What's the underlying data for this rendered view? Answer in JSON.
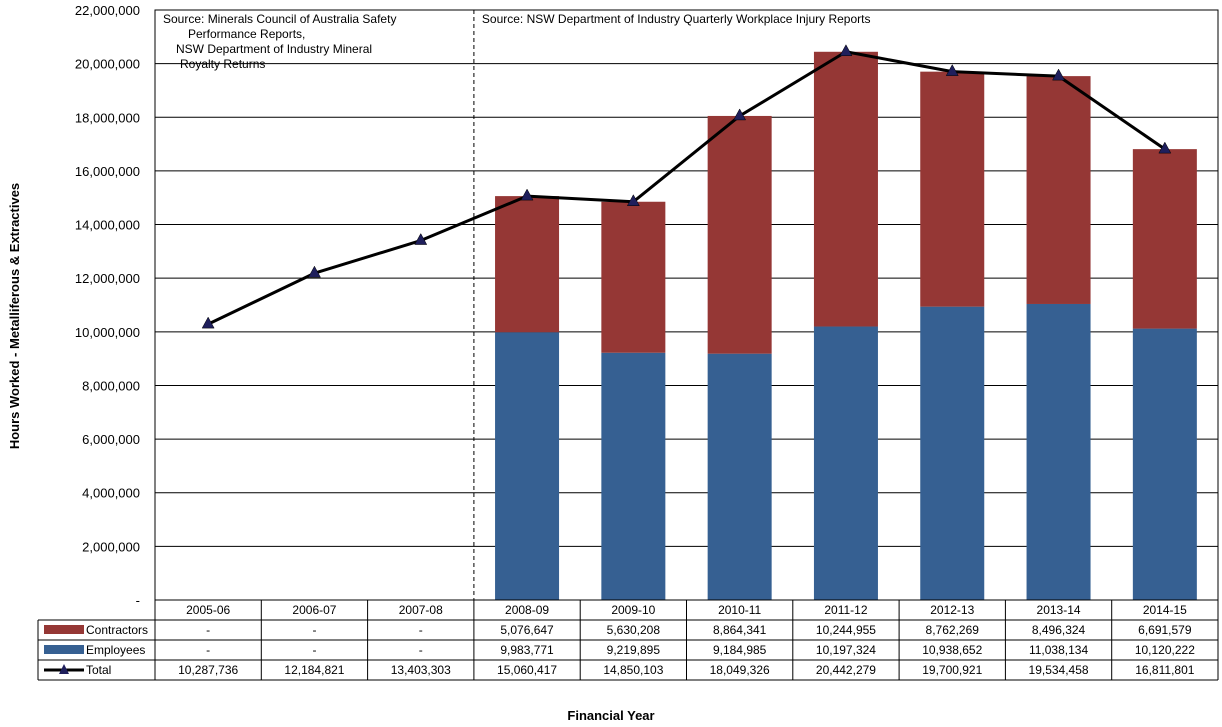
{
  "chart_data": {
    "type": "bar",
    "stacked": true,
    "categories": [
      "2005-06",
      "2006-07",
      "2007-08",
      "2008-09",
      "2009-10",
      "2010-11",
      "2011-12",
      "2012-13",
      "2013-14",
      "2014-15"
    ],
    "series": [
      {
        "name": "Contractors",
        "type": "bar",
        "color": "#953735",
        "values": [
          null,
          null,
          null,
          5076647,
          5630208,
          8864341,
          10244955,
          8762269,
          8496324,
          6691579
        ],
        "labels": [
          "-",
          "-",
          "-",
          "5,076,647",
          "5,630,208",
          "8,864,341",
          "10,244,955",
          "8,762,269",
          "8,496,324",
          "6,691,579"
        ]
      },
      {
        "name": "Employees",
        "type": "bar",
        "color": "#366092",
        "values": [
          null,
          null,
          null,
          9983771,
          9219895,
          9184985,
          10197324,
          10938652,
          11038134,
          10120222
        ],
        "labels": [
          "-",
          "-",
          "-",
          "9,983,771",
          "9,219,895",
          "9,184,985",
          "10,197,324",
          "10,938,652",
          "11,038,134",
          "10,120,222"
        ]
      },
      {
        "name": "Total",
        "type": "line",
        "color": "#000000",
        "marker_color": "#1f1f5c",
        "values": [
          10287736,
          12184821,
          13403303,
          15060417,
          14850103,
          18049326,
          20442279,
          19700921,
          19534458,
          16811801
        ],
        "labels": [
          "10,287,736",
          "12,184,821",
          "13,403,303",
          "15,060,417",
          "14,850,103",
          "18,049,326",
          "20,442,279",
          "19,700,921",
          "19,534,458",
          "16,811,801"
        ]
      }
    ],
    "ylabel": "Hours Worked - Metalliferous & Extractives",
    "xlabel": "Financial Year",
    "ylim": [
      0,
      22000000
    ],
    "y_ticks": [
      0,
      2000000,
      4000000,
      6000000,
      8000000,
      10000000,
      12000000,
      14000000,
      16000000,
      18000000,
      20000000,
      22000000
    ],
    "y_tick_labels": [
      "-",
      "2,000,000",
      "4,000,000",
      "6,000,000",
      "8,000,000",
      "10,000,000",
      "12,000,000",
      "14,000,000",
      "16,000,000",
      "18,000,000",
      "20,000,000",
      "22,000,000"
    ],
    "grid": true,
    "legend": "data-table",
    "annotations": [
      {
        "lines": [
          "Source:  Minerals Council of Australia Safety",
          "Performance Reports,",
          "NSW Department of Industry Mineral",
          "Royalty Returns"
        ]
      },
      {
        "lines": [
          "Source:  NSW Department of Industry Quarterly Workplace Injury Reports"
        ]
      }
    ],
    "divider_after_category": "2007-08"
  }
}
